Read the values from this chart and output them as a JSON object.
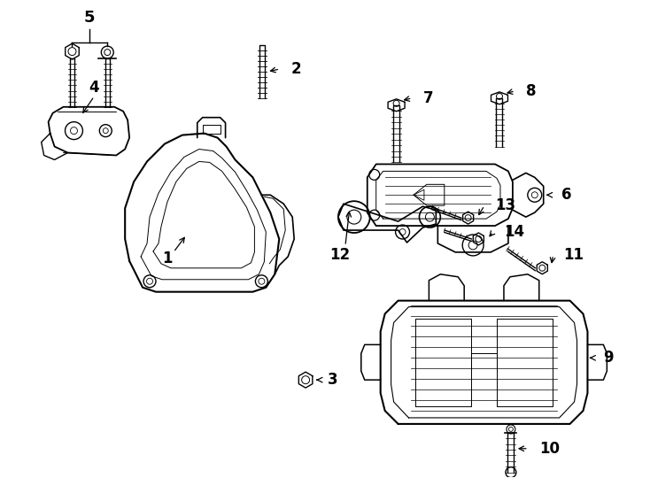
{
  "background_color": "#ffffff",
  "line_color": "#000000",
  "figure_width": 7.34,
  "figure_height": 5.4,
  "dpi": 100,
  "label_fontsize": 12,
  "label_fontweight": "bold"
}
